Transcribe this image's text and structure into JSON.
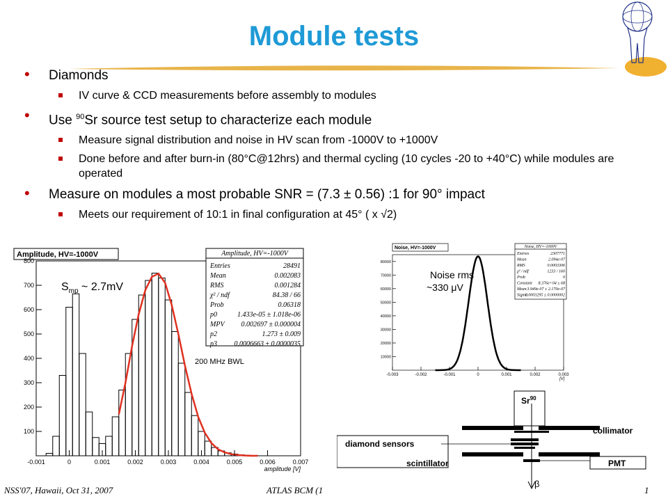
{
  "title": "Module tests",
  "bullets": {
    "b1": "Diamonds",
    "b1_1": "IV curve & CCD measurements before assembly to modules",
    "b2_pre": "Use ",
    "b2_sup": "90",
    "b2_post": "Sr source test setup to characterize each module",
    "b2_1": "Measure signal distribution and noise in HV scan from -1000V to +1000V",
    "b2_2": "Done before and after burn-in (80°C@12hrs) and thermal cycling (10 cycles -20 to +40°C) while modules are operated",
    "b3": "Measure on modules a most probable SNR = (7.3 ± 0.56) :1 for 90° impact",
    "b3_1": "Meets our requirement of 10:1 in final configuration at 45° ( x √2)"
  },
  "footer": {
    "left": "NSS'07, Hawaii, Oct 31, 2007",
    "center": "ATLAS BCM (1",
    "right": "1"
  },
  "colors": {
    "title": "#1e9ad6",
    "bullet": "#c00000",
    "fit": "#e03020",
    "logo_ellipse": "#f0b030"
  },
  "icons": [
    "atlas-logo-icon",
    "beta-arrow-icon"
  ],
  "amplitude_plot": {
    "header": "Amplitude, HV=-1000V",
    "annotation_smp": "S",
    "annotation_sub": "mp",
    "annotation_rest": " ~ 2.7mV",
    "bwl_label": "200 MHz BWL",
    "stats": {
      "title": "Amplitude, HV=-1000V",
      "rows": [
        [
          "Entries",
          "28491"
        ],
        [
          "Mean",
          "0.002083"
        ],
        [
          "RMS",
          "0.001284"
        ],
        [
          "χ² / ndf",
          "84.38 / 66"
        ],
        [
          "Prob",
          "0.06318"
        ],
        [
          "p0",
          "1.433e-05 ± 1.018e-06"
        ],
        [
          "MPV",
          "0.002697 ± 0.000004"
        ],
        [
          "p2",
          "1.273 ± 0.009"
        ],
        [
          "p3",
          "0.0006663 ± 0.0000035"
        ]
      ]
    }
  },
  "noise_plot": {
    "header": "Noise, HV=-1000V",
    "annotation_line1": "Noise rms",
    "annotation_line2": "~330 μV",
    "stats": {
      "title": "Noise, HV=-1000V",
      "rows": [
        [
          "Entries",
          "2307771"
        ],
        [
          "Mean",
          "2.094e-07"
        ],
        [
          "RMS",
          "0.0003306"
        ],
        [
          "χ² / ndf",
          "1233 / 160"
        ],
        [
          "Prob",
          "0"
        ],
        [
          "Constant",
          "8.376e+04 ± 68"
        ],
        [
          "Mean",
          "3.949e-07 ± 2.170e-07"
        ],
        [
          "Sigma",
          "0.0003295 ± 0.0000002"
        ]
      ]
    }
  },
  "setup_diagram": {
    "sr_label": "Sr",
    "sr_sup": "90",
    "collimator": "collimator",
    "diamond_sensors": "diamond sensors",
    "scintillator": "scintillator",
    "pmt": "PMT",
    "beta": "β"
  },
  "chart_data": [
    {
      "type": "bar",
      "title": "Amplitude, HV=-1000V",
      "xlabel": "amplitude [V]",
      "ylabel": "",
      "xlim": [
        -0.001,
        0.007
      ],
      "ylim": [
        0,
        800
      ],
      "xticks": [
        "-0.001",
        "0",
        "0.001",
        "0.002",
        "0.003",
        "0.004",
        "0.005",
        "0.006",
        "0.007"
      ],
      "yticks": [
        "100",
        "200",
        "300",
        "400",
        "500",
        "600",
        "700",
        "800"
      ],
      "series": [
        {
          "name": "",
          "x": [
            -0.0008,
            -0.0006,
            -0.0004,
            -0.0002,
            0,
            0.0002,
            0.0004,
            0.0006,
            0.0008,
            0.001,
            0.0012,
            0.0014,
            0.0016,
            0.0018,
            0.002,
            0.0022,
            0.0024,
            0.0026,
            0.0028,
            0.003,
            0.0032,
            0.0034,
            0.0036,
            0.0038,
            0.004,
            0.0042,
            0.0044,
            0.0046,
            0.0048,
            0.005,
            0.0052,
            0.0054,
            0.0056,
            0.0058,
            0.006
          ],
          "values": [
            0,
            10,
            80,
            330,
            610,
            665,
            420,
            180,
            75,
            50,
            80,
            160,
            270,
            420,
            560,
            660,
            720,
            750,
            730,
            640,
            510,
            380,
            260,
            165,
            100,
            60,
            34,
            20,
            12,
            7,
            4,
            2,
            1,
            0,
            0
          ]
        },
        {
          "name": "",
          "type": "line",
          "x": [
            0.0015,
            0.0017,
            0.0019,
            0.0021,
            0.0023,
            0.0025,
            0.0027,
            0.0029,
            0.0031,
            0.0033,
            0.0035,
            0.0037,
            0.0039,
            0.0041,
            0.0043,
            0.0045,
            0.0047,
            0.0049,
            0.0051,
            0.0053,
            0.0055,
            0.0057
          ],
          "values": [
            170,
            300,
            450,
            580,
            680,
            735,
            748,
            710,
            620,
            500,
            370,
            255,
            160,
            95,
            52,
            27,
            14,
            7,
            3,
            1,
            0,
            0
          ]
        }
      ]
    },
    {
      "type": "line",
      "title": "Noise, HV=-1000V",
      "xlabel": "[V]",
      "ylabel": "",
      "xlim": [
        -0.003,
        0.003
      ],
      "ylim": [
        0,
        85000
      ],
      "xticks": [
        "-0.003",
        "-0.002",
        "-0.001",
        "0",
        "0.001",
        "0.002",
        "0.003"
      ],
      "yticks": [
        "10000",
        "20000",
        "30000",
        "40000",
        "50000",
        "60000",
        "70000",
        "80000"
      ],
      "series": [
        {
          "name": "",
          "function": "gaussian",
          "constant": 83760,
          "mean": 0.0,
          "sigma": 0.00033
        }
      ]
    }
  ]
}
